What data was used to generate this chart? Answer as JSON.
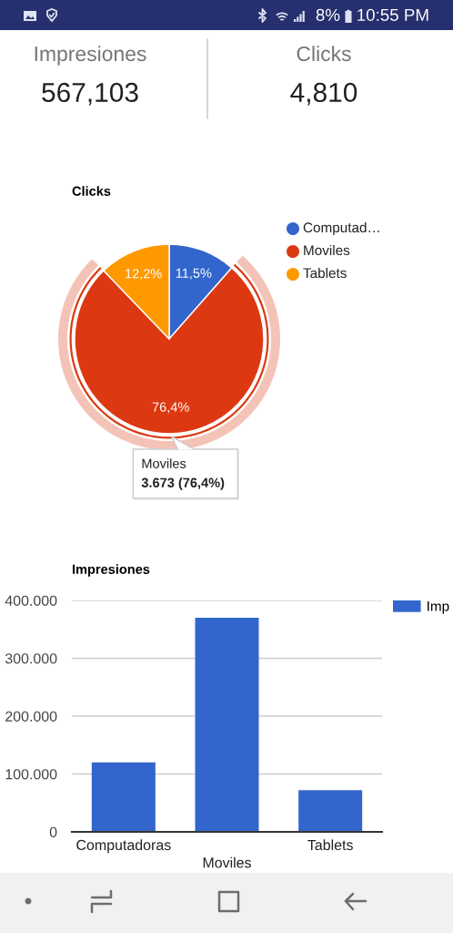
{
  "chart_data": [
    {
      "type": "other",
      "annotations": [
        "8%",
        "10:55 PM"
      ]
    },
    {
      "type": "other",
      "annotations": [
        "Impresiones",
        "567,103",
        "Clicks",
        "4,810"
      ]
    },
    {
      "type": "pie",
      "title": "Clicks",
      "categories": [
        "Computad…",
        "Moviles",
        "Tablets"
      ],
      "values": [
        11.5,
        76.4,
        12.2
      ],
      "colors": [
        "#3366cc",
        "#dc3912",
        "#ff9900"
      ],
      "value_labels": [
        "11,5%",
        "76,4%",
        "12,2%"
      ],
      "legend": "right",
      "annotations": [
        {
          "text": "Moviles\n3.673 (76,4%)",
          "x": "Moviles"
        }
      ]
    },
    {
      "type": "bar",
      "title": "Impresiones",
      "categories": [
        "Computadoras",
        "Moviles",
        "Tablets"
      ],
      "series": [
        {
          "name": "Imp",
          "color": "#3366cc",
          "values": [
            120000,
            370000,
            72000
          ]
        }
      ],
      "ylim": [
        0,
        400000
      ],
      "yticks": [
        0,
        {
          "value": 100000,
          "label": "100.000"
        },
        {
          "value": 200000,
          "label": "200.000"
        },
        {
          "value": 300000,
          "label": "300.000"
        },
        {
          "value": 400000,
          "label": "400.000"
        }
      ],
      "grid": "y",
      "legend": "right"
    }
  ]
}
